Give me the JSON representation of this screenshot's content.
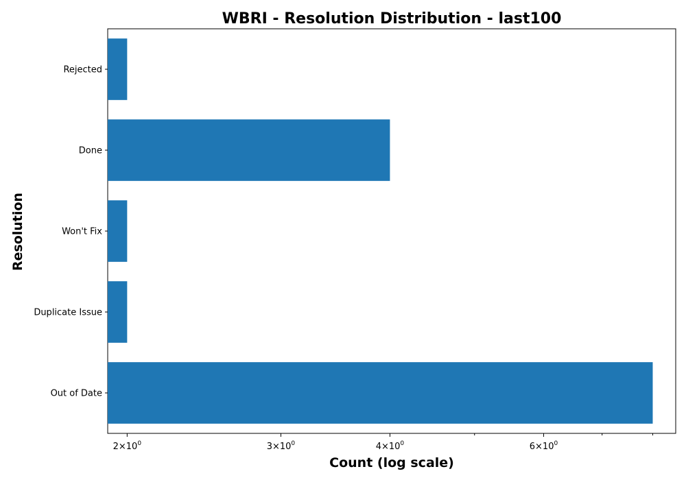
{
  "chart_data": {
    "type": "bar",
    "orientation": "horizontal",
    "title": "WBRI - Resolution Distribution - last100",
    "xlabel": "Count (log scale)",
    "ylabel": "Resolution",
    "x_scale": "log",
    "xlim": [
      1.9,
      8.5
    ],
    "x_ticks": [
      {
        "value": 2,
        "label_base": "2",
        "label_exp": "0"
      },
      {
        "value": 3,
        "label_base": "3",
        "label_exp": "0"
      },
      {
        "value": 4,
        "label_base": "4",
        "label_exp": "0"
      },
      {
        "value": 6,
        "label_base": "6",
        "label_exp": "0"
      }
    ],
    "x_minor_ticks": [
      5,
      7,
      8
    ],
    "categories": [
      "Out of Date",
      "Duplicate Issue",
      "Won't Fix",
      "Done",
      "Rejected"
    ],
    "values": [
      8,
      2,
      2,
      4,
      2
    ],
    "bar_color": "#1f77b4",
    "grid": false,
    "legend": "none"
  }
}
